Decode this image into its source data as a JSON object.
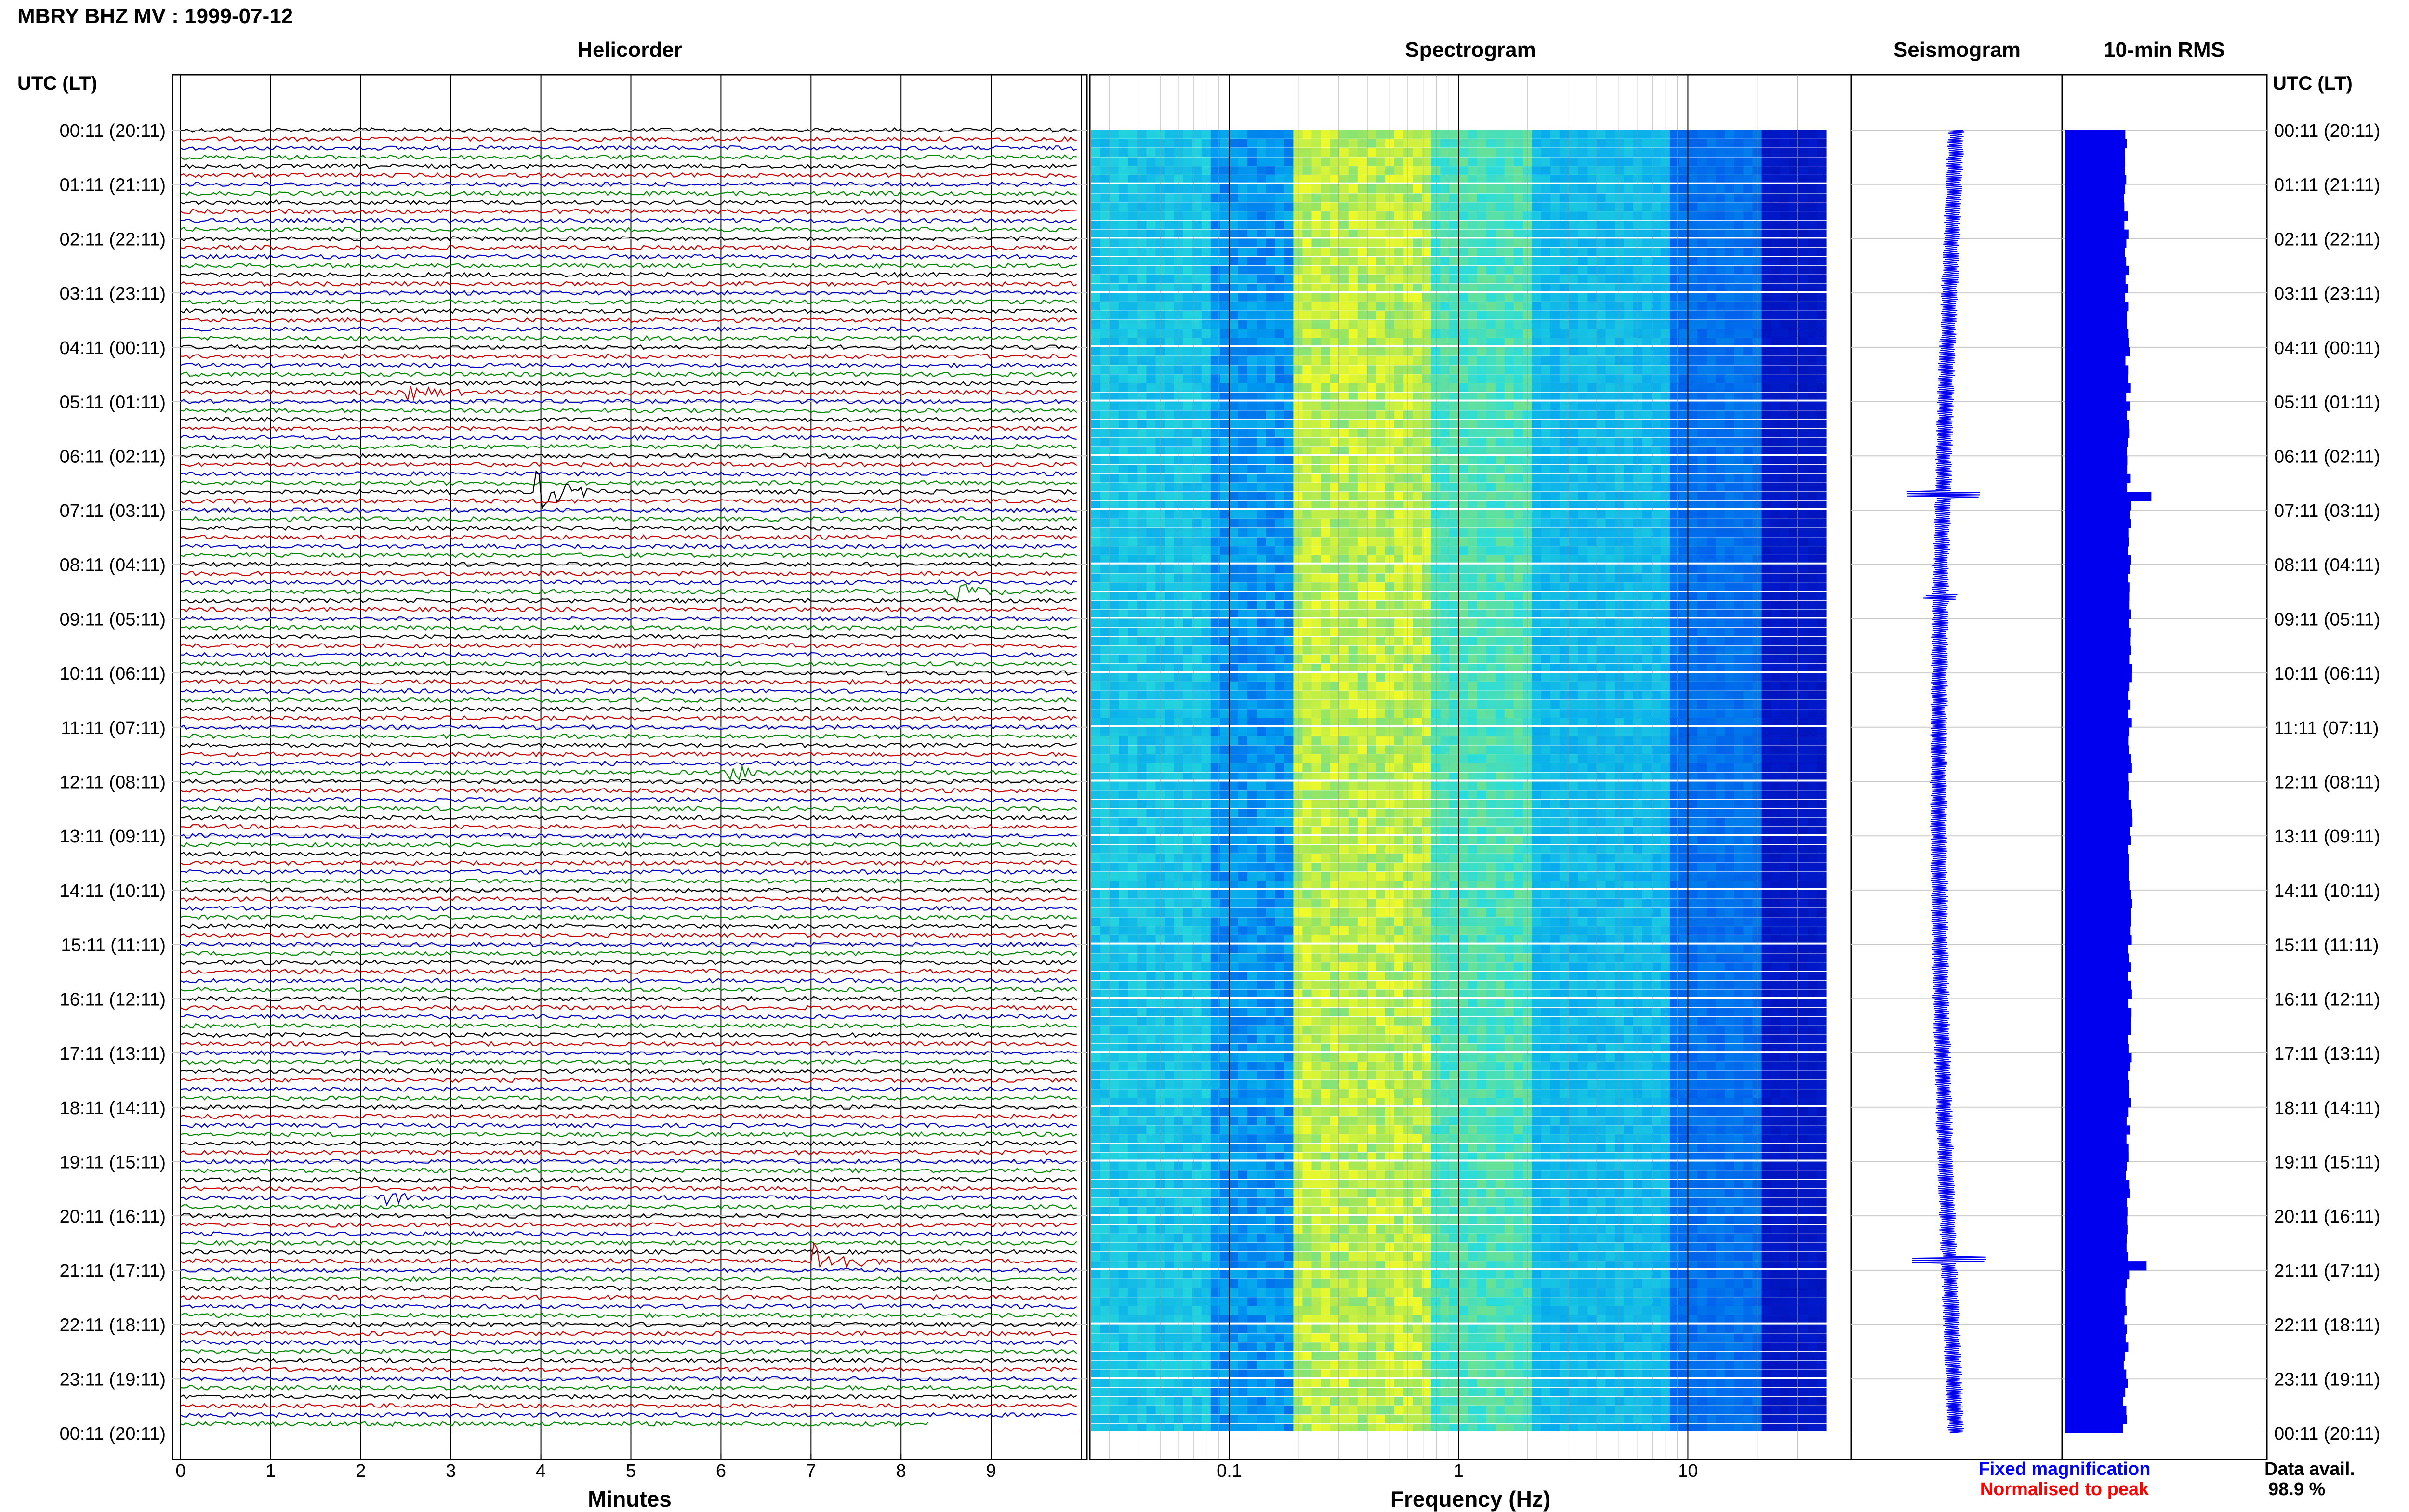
{
  "page": {
    "title": "MBRY BHZ MV : 1999-07-12",
    "left_axis_header": "UTC (LT)",
    "right_axis_header": "UTC (LT)",
    "legend": {
      "fixed": "Fixed magnification",
      "normalised": "Normalised to peak",
      "fixed_color": "#0000ff",
      "normalised_color": "#ff0000"
    },
    "data_avail": {
      "label": "Data avail.",
      "value": "98.9 %"
    }
  },
  "chart_data": [
    {
      "type": "line",
      "panel": "helicorder",
      "title": "Helicorder",
      "xlabel": "Minutes",
      "xlim": [
        0,
        10
      ],
      "x_ticks": [
        "0",
        "1",
        "2",
        "3",
        "4",
        "5",
        "6",
        "7",
        "8",
        "9"
      ],
      "y_tick_labels": [
        "00:11 (20:11)",
        "01:11 (21:11)",
        "02:11 (22:11)",
        "03:11 (23:11)",
        "04:11 (00:11)",
        "05:11 (01:11)",
        "06:11 (02:11)",
        "07:11 (03:11)",
        "08:11 (04:11)",
        "09:11 (05:11)",
        "10:11 (06:11)",
        "11:11 (07:11)",
        "12:11 (08:11)",
        "13:11 (09:11)",
        "14:11 (10:11)",
        "15:11 (11:11)",
        "16:11 (12:11)",
        "17:11 (13:11)",
        "18:11 (14:11)",
        "19:11 (15:11)",
        "20:11 (16:11)",
        "21:11 (17:11)",
        "22:11 (18:11)",
        "23:11 (19:11)",
        "00:11 (20:11)"
      ],
      "trace_colors": [
        "#000000",
        "#cc0000",
        "#0000cc",
        "#008800"
      ],
      "trace_count": 144,
      "events": [
        {
          "minute": 4.0,
          "hour": 6.65,
          "amplitude": 1.0,
          "color": "#000000"
        },
        {
          "minute": 7.1,
          "hour": 20.75,
          "amplitude": 1.0,
          "color": "#000099"
        },
        {
          "minute": 8.6,
          "hour": 8.55,
          "amplitude": 0.5,
          "color": "#008800"
        },
        {
          "minute": 2.6,
          "hour": 4.75,
          "amplitude": 0.3,
          "color": "#000000"
        },
        {
          "minute": 2.3,
          "hour": 19.65,
          "amplitude": 0.3,
          "color": "#0000cc"
        },
        {
          "minute": 6.2,
          "hour": 11.85,
          "amplitude": 0.3,
          "color": "#008800"
        }
      ]
    },
    {
      "type": "heatmap",
      "panel": "spectrogram",
      "title": "Spectrogram",
      "xlabel": "Frequency (Hz)",
      "x_scale": "log",
      "xlim": [
        0.025,
        40
      ],
      "x_ticks": [
        0.1,
        1,
        10
      ],
      "x_tick_labels": [
        "0.1",
        "1",
        "10"
      ],
      "peak_band_hz": [
        0.2,
        0.6
      ],
      "rows": 144
    },
    {
      "type": "line",
      "panel": "seismogram",
      "title": "Seismogram",
      "events": [
        {
          "hour": 6.7,
          "amplitude": 1.0
        },
        {
          "hour": 8.6,
          "amplitude": 0.3
        },
        {
          "hour": 20.8,
          "amplitude": 1.0
        }
      ]
    },
    {
      "type": "bar",
      "panel": "rms",
      "title": "10-min RMS",
      "bar_color": "#0000ee",
      "rows": 144,
      "peaks": [
        {
          "hour": 6.7,
          "value": 1.0
        },
        {
          "hour": 20.8,
          "value": 1.0
        }
      ]
    }
  ]
}
